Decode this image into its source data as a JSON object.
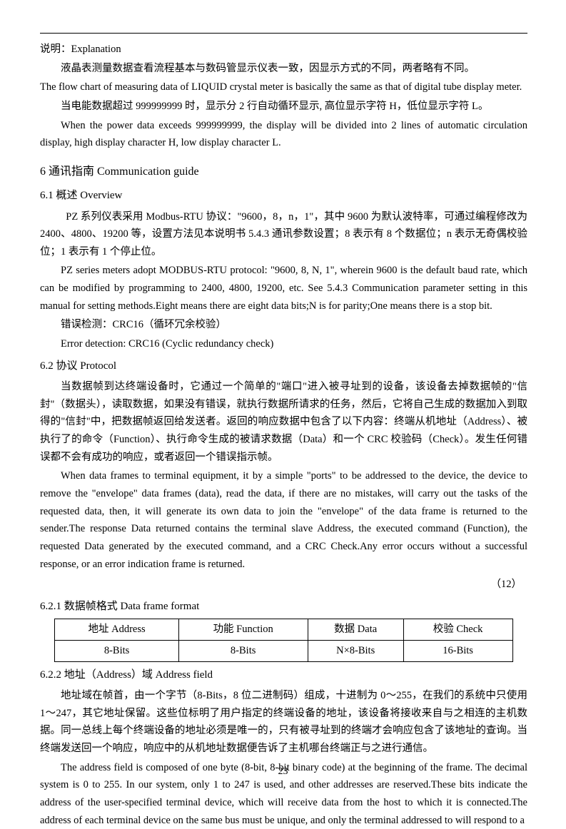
{
  "p0": "说明：Explanation",
  "p1": "液晶表测量数据查看流程基本与数码管显示仪表一致，因显示方式的不同，两者略有不同。",
  "p2": "The flow chart of measuring data of LIQUID crystal meter is basically the same as that of digital tube display meter.",
  "p3": "当电能数据超过 999999999 时，显示分 2 行自动循环显示, 高位显示字符 H，低位显示字符 L。",
  "p4": "When the power data exceeds 999999999, the display will be divided into 2 lines of automatic circulation display, high display character H, low display character L.",
  "h6": "6 通讯指南 Communication guide",
  "h61": "6.1 概述 Overview",
  "p5": "PZ 系列仪表采用 Modbus-RTU 协议：\"9600，8，n，1\"，其中 9600 为默认波特率，可通过编程修改为 2400、4800、19200 等，设置方法见本说明书 5.4.3 通讯参数设置；8 表示有 8 个数据位；n 表示无奇偶校验位；1 表示有 1 个停止位。",
  "p6": "PZ series meters adopt MODBUS-RTU protocol: \"9600, 8, N, 1\", wherein 9600 is the default baud rate, which can be modified by programming to 2400, 4800, 19200, etc. See 5.4.3 Communication parameter setting in this manual for setting methods.Eight means there are eight data bits;N is for parity;One means there is a stop bit.",
  "p7": "错误检测：CRC16（循环冗余校验）",
  "p8": "Error detection: CRC16 (Cyclic redundancy check)",
  "h62": "6.2 协议 Protocol",
  "p9": "当数据帧到达终端设备时，它通过一个简单的\"端口\"进入被寻址到的设备，该设备去掉数据帧的\"信封\"（数据头），读取数据，如果没有错误，就执行数据所请求的任务，然后，它将自己生成的数据加入到取得的\"信封\"中，把数据帧返回给发送者。返回的响应数据中包含了以下内容：终端从机地址（Address）、被执行了的命令（Function）、执行命令生成的被请求数据（Data）和一个 CRC 校验码（Check）。发生任何错误都不会有成功的响应，或者返回一个错误指示帧。",
  "p10": "When data frames to terminal equipment, it by a simple \"ports\" to be addressed to the device, the device to remove the \"envelope\" data frames (data), read the data, if there are no mistakes, will carry out the tasks of the requested data, then, it will generate its own data to join the \"envelope\" of the data frame is returned to the sender.The response Data returned contains the terminal slave Address, the executed command (Function), the requested Data generated by the executed command, and a CRC Check.Any error occurs without a successful response, or an error indication frame is returned.",
  "refnum": "（12）",
  "h621": "6.2.1 数据帧格式 Data frame format",
  "table": {
    "h1": "地址 Address",
    "h2": "功能 Function",
    "h3": "数据 Data",
    "h4": "校验 Check",
    "r1": "8-Bits",
    "r2": "8-Bits",
    "r3": "N×8-Bits",
    "r4": "16-Bits"
  },
  "h622": "6.2.2 地址（Address）域 Address field",
  "p11": "地址域在帧首，由一个字节（8-Bits，8 位二进制码）组成，十进制为 0～255，在我们的系统中只使用 1～247，其它地址保留。这些位标明了用户指定的终端设备的地址，该设备将接收来自与之相连的主机数据。同一总线上每个终端设备的地址必须是唯一的，只有被寻址到的终端才会响应包含了该地址的查询。当终端发送回一个响应，响应中的从机地址数据便告诉了主机哪台终端正与之进行通信。",
  "p12": "The address field is composed of one byte (8-bit, 8-bit binary code) at the beginning of the frame. The decimal system is 0 to 255. In our system, only 1 to 247 is used, and other addresses are reserved.These bits indicate the address of the user-specified terminal device, which will receive data from the host to which it is connected.The address of each terminal device on the same bus must be unique, and only the terminal addressed to will respond to a",
  "pagenum": "23"
}
